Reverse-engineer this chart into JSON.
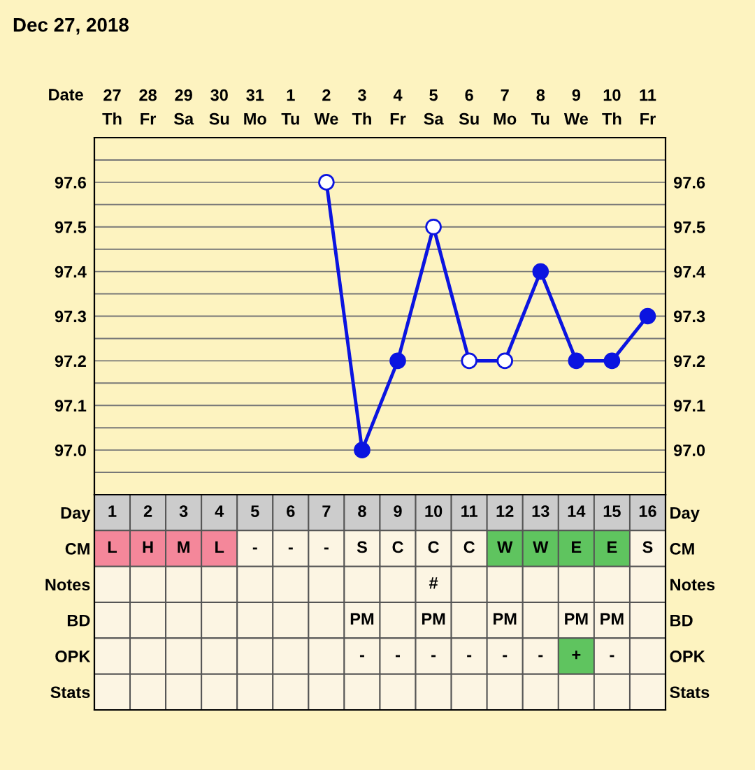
{
  "chart_data": [
    {
      "type": "line",
      "title": "Dec 27, 2018",
      "xlabel": "Date",
      "categories": [
        "27\nTh",
        "28\nFr",
        "29\nSa",
        "30\nSu",
        "31\nMo",
        "1\nTu",
        "2\nWe",
        "3\nTh",
        "4\nFr",
        "5\nSa",
        "6\nSu",
        "7\nMo",
        "8\nTu",
        "9\nWe",
        "10\nTh",
        "11\nFr"
      ],
      "series": [
        {
          "color": "#0b14e0",
          "values": [
            null,
            null,
            null,
            null,
            null,
            null,
            97.6,
            97.0,
            97.2,
            97.5,
            97.2,
            97.2,
            97.4,
            97.2,
            97.2,
            97.3
          ],
          "colors": [
            null,
            null,
            null,
            null,
            null,
            null,
            "#ffffff",
            "#0b14e0",
            "#0b14e0",
            "#ffffff",
            "#ffffff",
            "#ffffff",
            "#0b14e0",
            "#0b14e0",
            "#0b14e0",
            "#0b14e0"
          ]
        }
      ],
      "ylim": [
        96.9,
        97.7
      ],
      "yticks": [
        {
          "value": 96.95,
          "label": null
        },
        {
          "value": 97.0,
          "label": "97.0"
        },
        {
          "value": 97.05,
          "label": null
        },
        97.1,
        {
          "value": 97.15,
          "label": null
        },
        97.2,
        {
          "value": 97.25,
          "label": null
        },
        97.3,
        {
          "value": 97.35,
          "label": null
        },
        97.4,
        {
          "value": 97.45,
          "label": null
        },
        97.5,
        {
          "value": 97.55,
          "label": null
        },
        97.6,
        {
          "value": 97.65,
          "label": null
        }
      ],
      "y2lim": [
        96.9,
        97.7
      ],
      "y2ticks": [
        {
          "value": 97.0,
          "label": "97.0"
        },
        97.1,
        97.2,
        97.3,
        97.4,
        97.5,
        97.6
      ],
      "grid": true,
      "marker": "circle",
      "line_style": "solid"
    },
    {
      "type": "heatmap",
      "categories": [
        "1",
        "2",
        "3",
        "4",
        "5",
        "6",
        "7",
        "8",
        "9",
        "10",
        "11",
        "12",
        "13",
        "14",
        "15",
        "16"
      ],
      "y_categories": [
        "Day",
        "CM",
        "Notes",
        "BD",
        "OPK",
        "Stats"
      ],
      "y2_categories": [
        "Day",
        "CM",
        "Notes",
        "BD",
        "OPK",
        "Stats"
      ],
      "cells": [
        [
          null,
          null,
          null,
          null,
          null,
          null,
          null,
          null,
          null,
          null,
          null,
          null,
          null,
          null,
          null,
          null
        ],
        [
          null,
          null,
          null,
          null,
          null,
          null,
          null,
          null,
          null,
          null,
          null,
          null,
          null,
          null,
          null,
          null
        ],
        [
          null,
          null,
          null,
          null,
          null,
          null,
          null,
          null,
          null,
          null,
          null,
          null,
          null,
          null,
          null,
          null
        ],
        [
          null,
          null,
          null,
          null,
          null,
          null,
          null,
          null,
          null,
          null,
          null,
          null,
          null,
          null,
          null,
          null
        ],
        [
          null,
          null,
          null,
          null,
          null,
          null,
          null,
          null,
          null,
          null,
          null,
          null,
          null,
          null,
          null,
          null
        ],
        [
          null,
          null,
          null,
          null,
          null,
          null,
          null,
          null,
          null,
          null,
          null,
          null,
          null,
          null,
          null,
          null
        ]
      ],
      "cell_labels": [
        [
          null,
          null,
          null,
          null,
          null,
          null,
          null,
          null,
          null,
          null,
          null,
          null,
          null,
          null,
          null,
          null
        ],
        [
          "L",
          "H",
          "M",
          "L",
          "-",
          "-",
          "-",
          "S",
          "C",
          "C",
          "C",
          "W",
          "W",
          "E",
          "E",
          "S"
        ],
        [
          null,
          null,
          null,
          null,
          null,
          null,
          null,
          null,
          null,
          "#",
          null,
          null,
          null,
          null,
          null,
          null
        ],
        [
          null,
          null,
          null,
          null,
          null,
          null,
          null,
          "PM",
          null,
          "PM",
          null,
          "PM",
          null,
          "PM",
          "PM",
          null
        ],
        [
          null,
          null,
          null,
          null,
          null,
          null,
          null,
          "-",
          "-",
          "-",
          "-",
          "-",
          "-",
          "+",
          "-",
          null
        ],
        [
          null,
          null,
          null,
          null,
          null,
          null,
          null,
          null,
          null,
          null,
          null,
          null,
          null,
          null,
          null,
          null
        ]
      ],
      "colors": [
        [
          "#cccccc",
          "#cccccc",
          "#cccccc",
          "#cccccc",
          "#cccccc",
          "#cccccc",
          "#cccccc",
          "#cccccc",
          "#cccccc",
          "#cccccc",
          "#cccccc",
          "#cccccc",
          "#cccccc",
          "#cccccc",
          "#cccccc",
          "#cccccc"
        ],
        [
          "#f4879a",
          "#f4879a",
          "#f4879a",
          "#f4879a",
          "#fcf5e3",
          "#fcf5e3",
          "#fcf5e3",
          "#fcf5e3",
          "#fcf5e3",
          "#fcf5e3",
          "#fcf5e3",
          "#5fc45f",
          "#5fc45f",
          "#5fc45f",
          "#5fc45f",
          "#fcf5e3"
        ],
        [
          "#fcf5e3",
          "#fcf5e3",
          "#fcf5e3",
          "#fcf5e3",
          "#fcf5e3",
          "#fcf5e3",
          "#fcf5e3",
          "#fcf5e3",
          "#fcf5e3",
          "#fcf5e3",
          "#fcf5e3",
          "#fcf5e3",
          "#fcf5e3",
          "#fcf5e3",
          "#fcf5e3",
          "#fcf5e3"
        ],
        [
          "#fcf5e3",
          "#fcf5e3",
          "#fcf5e3",
          "#fcf5e3",
          "#fcf5e3",
          "#fcf5e3",
          "#fcf5e3",
          "#fcf5e3",
          "#fcf5e3",
          "#fcf5e3",
          "#fcf5e3",
          "#fcf5e3",
          "#fcf5e3",
          "#fcf5e3",
          "#fcf5e3",
          "#fcf5e3"
        ],
        [
          "#fcf5e3",
          "#fcf5e3",
          "#fcf5e3",
          "#fcf5e3",
          "#fcf5e3",
          "#fcf5e3",
          "#fcf5e3",
          "#fcf5e3",
          "#fcf5e3",
          "#fcf5e3",
          "#fcf5e3",
          "#fcf5e3",
          "#fcf5e3",
          "#5fc45f",
          "#fcf5e3",
          "#fcf5e3"
        ],
        [
          "#fcf5e3",
          "#fcf5e3",
          "#fcf5e3",
          "#fcf5e3",
          "#fcf5e3",
          "#fcf5e3",
          "#fcf5e3",
          "#fcf5e3",
          "#fcf5e3",
          "#fcf5e3",
          "#fcf5e3",
          "#fcf5e3",
          "#fcf5e3",
          "#fcf5e3",
          "#fcf5e3",
          "#fcf5e3"
        ]
      ]
    }
  ]
}
